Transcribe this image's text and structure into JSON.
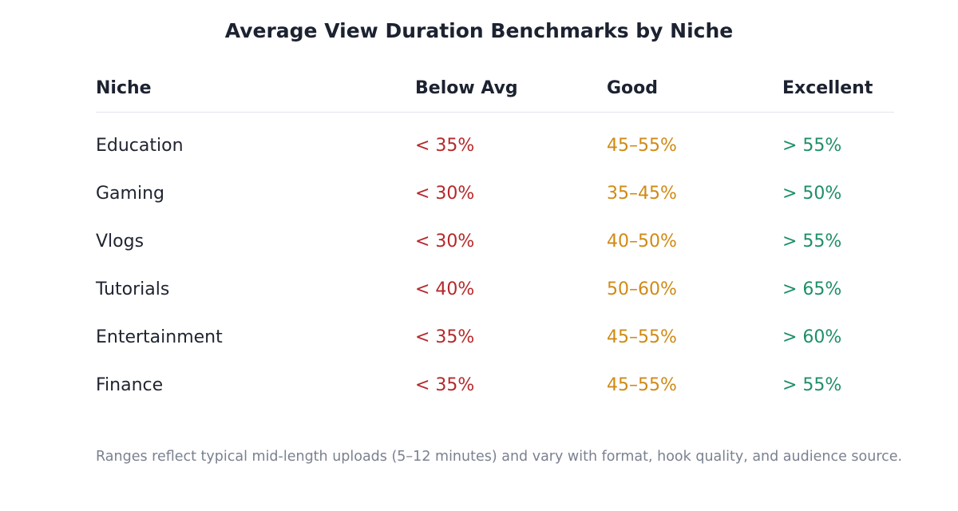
{
  "title": "Average View Duration Benchmarks by Niche",
  "colors": {
    "below": "#b5282b",
    "good": "#d08a14",
    "excellent": "#1f8e6a"
  },
  "chart_data": {
    "type": "table",
    "title": "Average View Duration Benchmarks by Niche",
    "columns": [
      "Niche",
      "Below Avg",
      "Good",
      "Excellent"
    ],
    "rows": [
      {
        "niche": "Education",
        "below": "< 35%",
        "good": "45–55%",
        "excellent": "> 55%"
      },
      {
        "niche": "Gaming",
        "below": "< 30%",
        "good": "35–45%",
        "excellent": "> 50%"
      },
      {
        "niche": "Vlogs",
        "below": "< 30%",
        "good": "40–50%",
        "excellent": "> 55%"
      },
      {
        "niche": "Tutorials",
        "below": "< 40%",
        "good": "50–60%",
        "excellent": "> 65%"
      },
      {
        "niche": "Entertainment",
        "below": "< 35%",
        "good": "45–55%",
        "excellent": "> 60%"
      },
      {
        "niche": "Finance",
        "below": "< 35%",
        "good": "45–55%",
        "excellent": "> 55%"
      }
    ]
  },
  "footnote": "Ranges reflect typical mid-length uploads (5–12 minutes) and vary with format, hook quality, and audience source."
}
